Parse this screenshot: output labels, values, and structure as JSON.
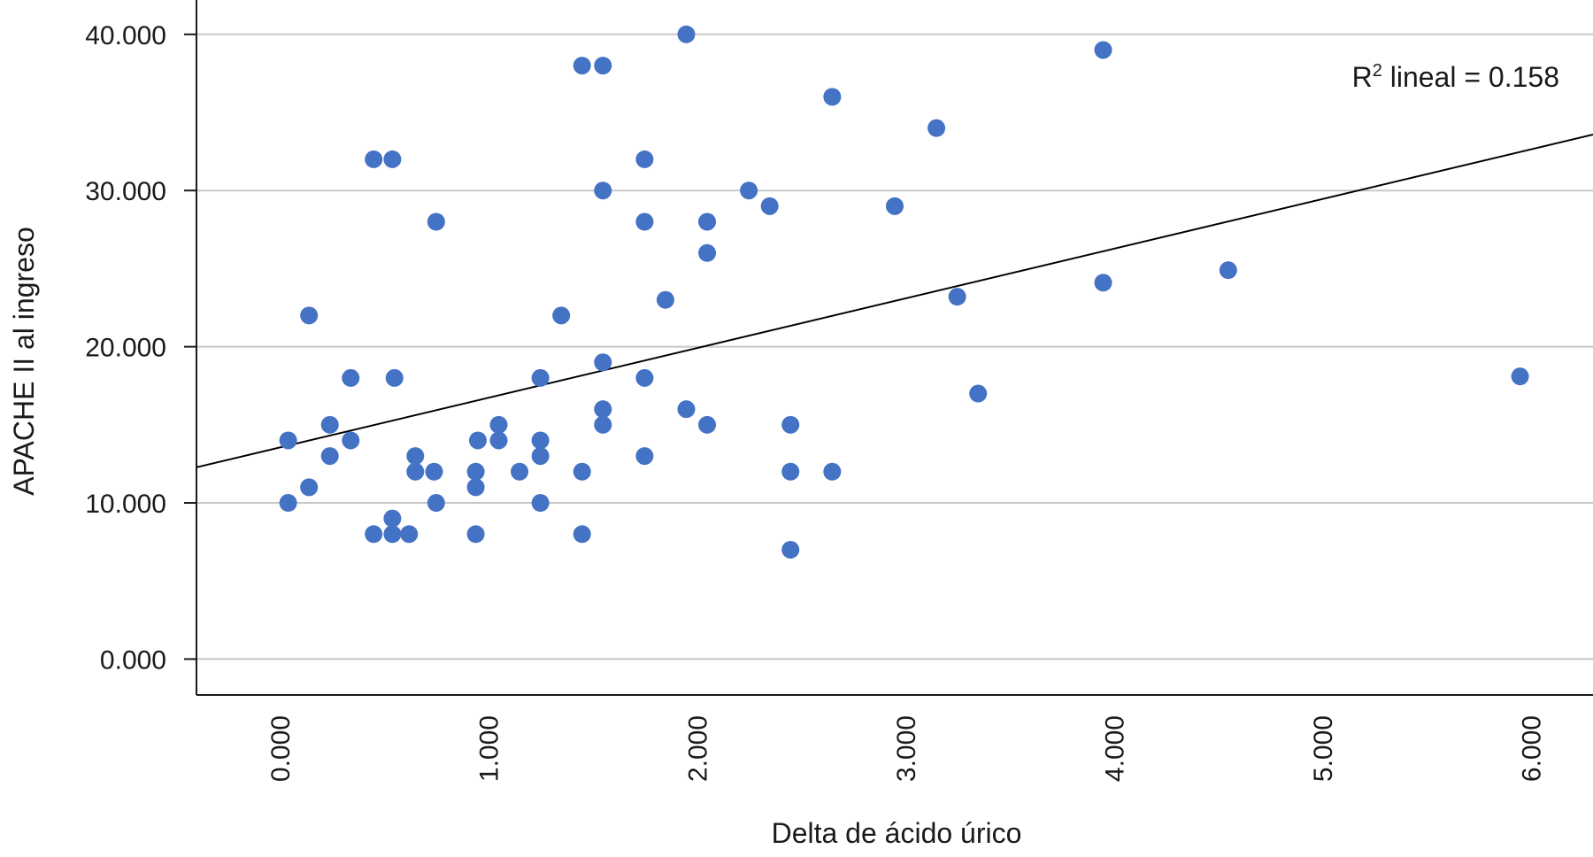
{
  "chart_data": {
    "type": "scatter",
    "xlabel": "Delta de ácido úrico",
    "ylabel": "APACHE II al ingreso",
    "xlim": [
      -0.4,
      6.3
    ],
    "ylim": [
      -2.3,
      42.2
    ],
    "x_ticks": [
      0,
      1,
      2,
      3,
      4,
      5,
      6
    ],
    "x_tick_labels": [
      "0.000",
      "1.000",
      "2.000",
      "3.000",
      "4.000",
      "5.000",
      "6.000"
    ],
    "y_ticks": [
      0,
      10,
      20,
      30,
      40
    ],
    "y_tick_labels": [
      "0.000",
      "10.000",
      "20.000",
      "30.000",
      "40.000"
    ],
    "grid": "horizontal",
    "point_color": "#4472C4",
    "fit_line": {
      "type": "linear",
      "intercept": 13.55,
      "slope": 3.18,
      "color": "#000000",
      "r2_prefix": "R",
      "r2_superscript": "2",
      "r2_suffix": " lineal = 0.158"
    },
    "points": [
      {
        "x": 0.04,
        "y": 14
      },
      {
        "x": 0.04,
        "y": 10
      },
      {
        "x": 0.14,
        "y": 22
      },
      {
        "x": 0.14,
        "y": 11
      },
      {
        "x": 0.24,
        "y": 15
      },
      {
        "x": 0.24,
        "y": 13
      },
      {
        "x": 0.34,
        "y": 18
      },
      {
        "x": 0.34,
        "y": 14
      },
      {
        "x": 0.45,
        "y": 32
      },
      {
        "x": 0.54,
        "y": 32
      },
      {
        "x": 0.45,
        "y": 8
      },
      {
        "x": 0.54,
        "y": 8
      },
      {
        "x": 0.54,
        "y": 9
      },
      {
        "x": 0.55,
        "y": 18
      },
      {
        "x": 0.62,
        "y": 8
      },
      {
        "x": 0.65,
        "y": 13
      },
      {
        "x": 0.65,
        "y": 12
      },
      {
        "x": 0.74,
        "y": 12
      },
      {
        "x": 0.75,
        "y": 28
      },
      {
        "x": 0.75,
        "y": 10
      },
      {
        "x": 0.95,
        "y": 14
      },
      {
        "x": 0.94,
        "y": 12
      },
      {
        "x": 0.94,
        "y": 11
      },
      {
        "x": 0.94,
        "y": 8
      },
      {
        "x": 1.05,
        "y": 15
      },
      {
        "x": 1.05,
        "y": 14
      },
      {
        "x": 1.15,
        "y": 12
      },
      {
        "x": 1.25,
        "y": 18
      },
      {
        "x": 1.25,
        "y": 14
      },
      {
        "x": 1.25,
        "y": 13
      },
      {
        "x": 1.25,
        "y": 10
      },
      {
        "x": 1.35,
        "y": 22
      },
      {
        "x": 1.45,
        "y": 38
      },
      {
        "x": 1.45,
        "y": 12
      },
      {
        "x": 1.45,
        "y": 8
      },
      {
        "x": 1.55,
        "y": 38
      },
      {
        "x": 1.55,
        "y": 30
      },
      {
        "x": 1.55,
        "y": 19
      },
      {
        "x": 1.55,
        "y": 16
      },
      {
        "x": 1.55,
        "y": 15
      },
      {
        "x": 1.75,
        "y": 32
      },
      {
        "x": 1.75,
        "y": 28
      },
      {
        "x": 1.75,
        "y": 18
      },
      {
        "x": 1.75,
        "y": 13
      },
      {
        "x": 1.85,
        "y": 23
      },
      {
        "x": 1.95,
        "y": 40
      },
      {
        "x": 1.95,
        "y": 16
      },
      {
        "x": 2.05,
        "y": 28
      },
      {
        "x": 2.05,
        "y": 26
      },
      {
        "x": 2.05,
        "y": 15
      },
      {
        "x": 2.25,
        "y": 30
      },
      {
        "x": 2.35,
        "y": 29
      },
      {
        "x": 2.45,
        "y": 15
      },
      {
        "x": 2.45,
        "y": 12
      },
      {
        "x": 2.45,
        "y": 7
      },
      {
        "x": 2.65,
        "y": 36
      },
      {
        "x": 2.65,
        "y": 12
      },
      {
        "x": 2.95,
        "y": 29
      },
      {
        "x": 3.15,
        "y": 34
      },
      {
        "x": 3.25,
        "y": 23.2
      },
      {
        "x": 3.35,
        "y": 17
      },
      {
        "x": 3.95,
        "y": 39
      },
      {
        "x": 3.95,
        "y": 24.1
      },
      {
        "x": 4.55,
        "y": 24.9
      },
      {
        "x": 5.95,
        "y": 18.1
      }
    ]
  }
}
